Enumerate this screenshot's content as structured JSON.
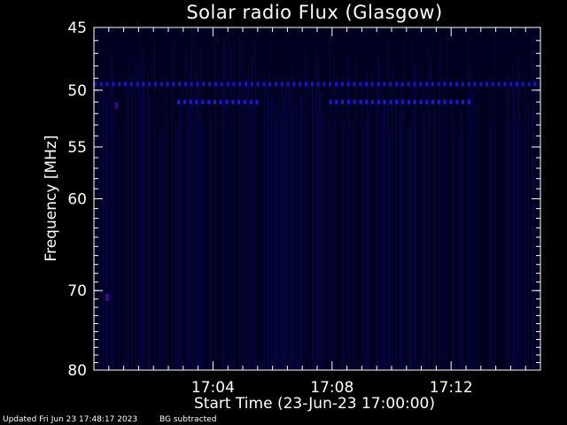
{
  "chart_data": {
    "type": "heatmap",
    "title": "Solar radio Flux (Glasgow)",
    "xlabel": "Start Time (23-Jun-23 17:00:00)",
    "ylabel": "Frequency [MHz]",
    "x_range_minutes": [
      0,
      15
    ],
    "x_ticks": [
      {
        "minute": 4,
        "label": "17:04"
      },
      {
        "minute": 8,
        "label": "17:08"
      },
      {
        "minute": 12,
        "label": "17:12"
      }
    ],
    "y_range_mhz": [
      45,
      80
    ],
    "y_scale": "log",
    "y_ticks": [
      {
        "mhz": 45,
        "label": "45"
      },
      {
        "mhz": 50,
        "label": "50"
      },
      {
        "mhz": 55,
        "label": "55"
      },
      {
        "mhz": 60,
        "label": "60"
      },
      {
        "mhz": 70,
        "label": "70"
      },
      {
        "mhz": 80,
        "label": "80"
      }
    ],
    "background_color": "#000020",
    "emission_color": "#2020ff",
    "features": [
      {
        "name": "interference-band",
        "mhz": 49.5,
        "from_minute": 0,
        "to_minute": 15,
        "intensity": 0.7
      },
      {
        "name": "interference-band",
        "mhz": 51.0,
        "from_minute": 2.8,
        "to_minute": 5.6,
        "intensity": 0.8
      },
      {
        "name": "interference-band",
        "mhz": 51.0,
        "from_minute": 7.9,
        "to_minute": 12.7,
        "intensity": 0.8
      },
      {
        "name": "spot",
        "mhz": 51.3,
        "from_minute": 0.7,
        "to_minute": 0.8,
        "intensity": 0.6
      },
      {
        "name": "spot",
        "mhz": 70.8,
        "from_minute": 0.4,
        "to_minute": 0.5,
        "intensity": 0.7
      }
    ]
  },
  "footer": {
    "updated": "Updated Fri Jun 23 17:48:17 2023",
    "note": "BG subtracted"
  }
}
